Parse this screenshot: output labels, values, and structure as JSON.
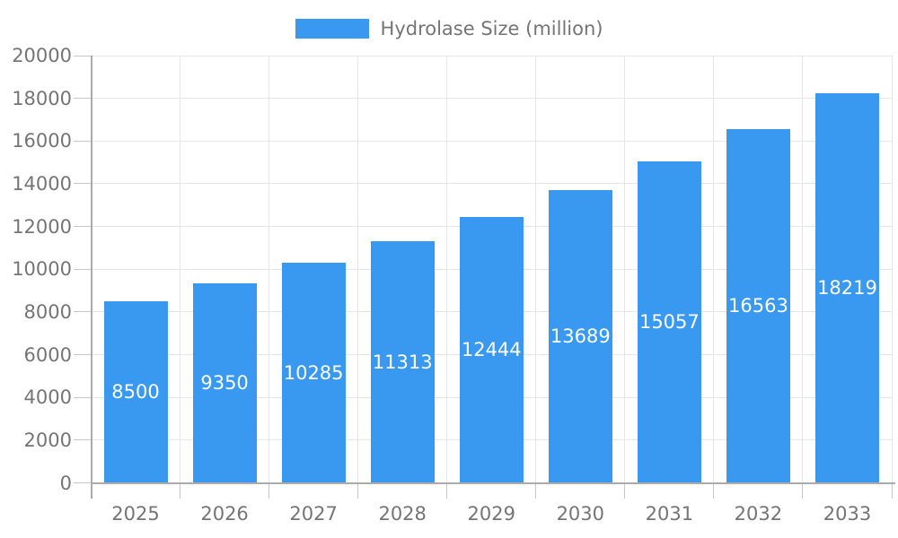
{
  "chart_data": {
    "type": "bar",
    "title": "Hydrolase Size (million)",
    "legend": "Hydrolase Size (million)",
    "legend_position": "top-center",
    "categories": [
      "2025",
      "2026",
      "2027",
      "2028",
      "2029",
      "2030",
      "2031",
      "2032",
      "2033"
    ],
    "series": [
      {
        "name": "Hydrolase Size (million)",
        "values": [
          8500,
          9350,
          10285,
          11313,
          12444,
          13689,
          15057,
          16563,
          18219
        ]
      }
    ],
    "data_labels": [
      "8500",
      "9350",
      "10285",
      "11313",
      "12444",
      "13689",
      "15057",
      "16563",
      "18219"
    ],
    "xlabel": "",
    "ylabel": "",
    "ylim": [
      0,
      20000
    ],
    "ytick_step": 2000,
    "ytick_labels": [
      "0",
      "2000",
      "4000",
      "6000",
      "8000",
      "10000",
      "12000",
      "14000",
      "16000",
      "18000",
      "20000"
    ],
    "grid": "on",
    "colors": {
      "bar": "#3999f0",
      "label_text": "#757575",
      "bar_label_text": "#ffffff",
      "gridline": "#e6e6e6",
      "axis_line": "#ababab",
      "tick": "#c9c9c9",
      "background": "#ffffff"
    }
  }
}
